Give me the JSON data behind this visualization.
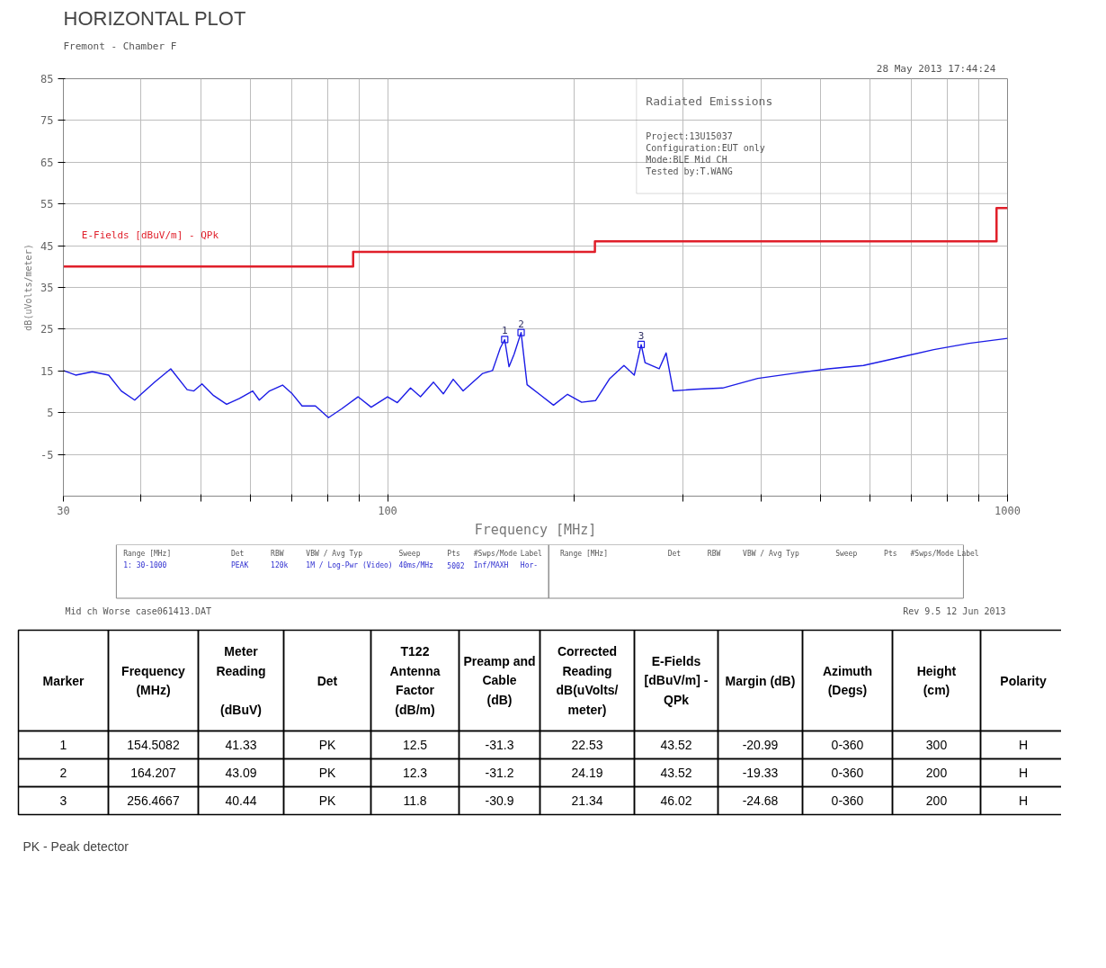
{
  "chart_data": [
    {
      "type": "line",
      "title": "HORIZONTAL PLOT",
      "xlabel": "Frequency [MHz]",
      "ylabel": "dB(uVolts/meter)",
      "log": "x",
      "grid": true,
      "xlim": [
        30,
        1000
      ],
      "ylim": [
        -15,
        85
      ],
      "xticks": [
        30,
        {
          "value": 40,
          "label": null
        },
        {
          "value": 50,
          "label": null
        },
        {
          "value": 60,
          "label": null
        },
        {
          "value": 70,
          "label": null
        },
        {
          "value": 80,
          "label": null
        },
        {
          "value": 90,
          "label": null
        },
        100,
        {
          "value": 200,
          "label": null
        },
        {
          "value": 300,
          "label": null
        },
        {
          "value": 400,
          "label": null
        },
        {
          "value": 500,
          "label": null
        },
        {
          "value": 600,
          "label": null
        },
        {
          "value": 700,
          "label": null
        },
        {
          "value": 800,
          "label": null
        },
        {
          "value": 900,
          "label": null
        },
        1000
      ],
      "yticks": [
        85,
        75,
        65,
        55,
        45,
        35,
        25,
        15,
        5,
        -5
      ],
      "annotations": [
        "Fremont - Chamber F",
        "28 May 2013   17:44:24",
        "Radiated Emissions",
        "Project:13U15037",
        "Configuration:EUT only",
        "Mode:BLE Mid CH",
        "Tested by:T.WANG",
        "Range [MHz]",
        "Det",
        "RBW",
        "VBW / Avg Typ",
        "Sweep",
        "Pts",
        "#Swps/Mode",
        "Label",
        "1: 30-1000",
        "PEAK",
        "120k",
        "1M / Log-Pwr (Video)",
        "40ms/MHz",
        "5002",
        "Inf/MAXH",
        "Hor-",
        "Range [MHz]",
        "Det",
        "RBW",
        "VBW / Avg Typ",
        "Sweep",
        "Pts",
        "#Swps/Mode",
        "Label",
        "Mid ch Worse case061413.DAT",
        "Rev 9.5 12 Jun 2013",
        {
          "text": "1",
          "x": 154.5082,
          "y": 22.53
        },
        {
          "text": "2",
          "x": 164.207,
          "y": 24.19
        },
        {
          "text": "3",
          "x": 256.4667,
          "y": 21.34
        }
      ],
      "series": [
        {
          "type": "line",
          "color": "#1c1ce6",
          "x": [
            30,
            31.4,
            33.4,
            35.5,
            37.2,
            39.1,
            40.1,
            42.1,
            44.7,
            47.5,
            48.7,
            50.2,
            52.4,
            55.0,
            57.7,
            60.6,
            62.1,
            64.5,
            67.7,
            70.2,
            72.8,
            76.5,
            80.3,
            84.3,
            89.6,
            94.1,
            100,
            103.7,
            108.9,
            113,
            118.6,
            123,
            127.6,
            132.4,
            137.3,
            142.4,
            147.7,
            150,
            152,
            154.5,
            157,
            160,
            164.2,
            167.9,
            175.8,
            185.2,
            195.1,
            205.6,
            216.6,
            228.3,
            240.6,
            250,
            256.5,
            260.2,
            274.2,
            281.4,
            288.9,
            312.6,
            347,
            395.4,
            450.7,
            513.8,
            585.6,
            667.4,
            760.5,
            866.9,
            1000
          ],
          "values": [
            15.1,
            14.0,
            14.8,
            14.0,
            10.2,
            8.0,
            9.5,
            12.3,
            15.5,
            10.5,
            10.2,
            11.9,
            9.1,
            7.0,
            8.4,
            10.2,
            8.0,
            10.2,
            11.6,
            9.5,
            6.6,
            6.6,
            3.8,
            5.9,
            8.8,
            6.3,
            8.8,
            7.4,
            10.9,
            8.8,
            12.3,
            9.5,
            13.0,
            10.2,
            12.3,
            14.4,
            15.1,
            18,
            20.5,
            22.5,
            16,
            19,
            24.2,
            11.7,
            9.4,
            6.8,
            9.4,
            7.5,
            7.9,
            13.2,
            16.3,
            14,
            21.3,
            17.0,
            15.5,
            19.3,
            10.2,
            10.6,
            10.9,
            13.2,
            14.4,
            15.5,
            16.3,
            18.2,
            20.1,
            21.6,
            22.8
          ]
        },
        {
          "type": "step",
          "name": "E-Fields [dBuV/m] - QPk",
          "color": "#e01f2a",
          "x": [
            30,
            88,
            216,
            960,
            1000
          ],
          "values": [
            40,
            43.52,
            46.02,
            54,
            54
          ]
        },
        {
          "type": "scatter",
          "marker": "square",
          "color": "#1c1ce6",
          "x": [
            154.5082,
            164.207,
            256.4667
          ],
          "values": [
            22.53,
            24.19,
            21.34
          ]
        }
      ]
    },
    {
      "type": "other",
      "categories": [
        "Marker",
        "Frequency\n(MHz)",
        "Meter\nReading\n\n(dBuV)",
        "Det",
        "T122\nAntenna\nFactor\n(dB/m)",
        "Preamp and\nCable\n(dB)",
        "Corrected\nReading\ndB(uVolts/\nmeter)",
        "E-Fields\n[dBuV/m] -\nQPk",
        "Margin (dB)",
        "Azimuth\n(Degs)",
        "Height\n(cm)",
        "Polarity"
      ],
      "annotations": [
        "1",
        "154.5082",
        "41.33",
        "PK",
        "12.5",
        "-31.3",
        "22.53",
        "43.52",
        "-20.99",
        "0-360",
        "300",
        "H",
        "2",
        "164.207",
        "43.09",
        "PK",
        "12.3",
        "-31.2",
        "24.19",
        "43.52",
        "-19.33",
        "0-360",
        "200",
        "H",
        "3",
        "256.4667",
        "40.44",
        "PK",
        "11.8",
        "-30.9",
        "21.34",
        "46.02",
        "-24.68",
        "0-360",
        "200",
        "H",
        "PK - Peak detector"
      ]
    }
  ]
}
